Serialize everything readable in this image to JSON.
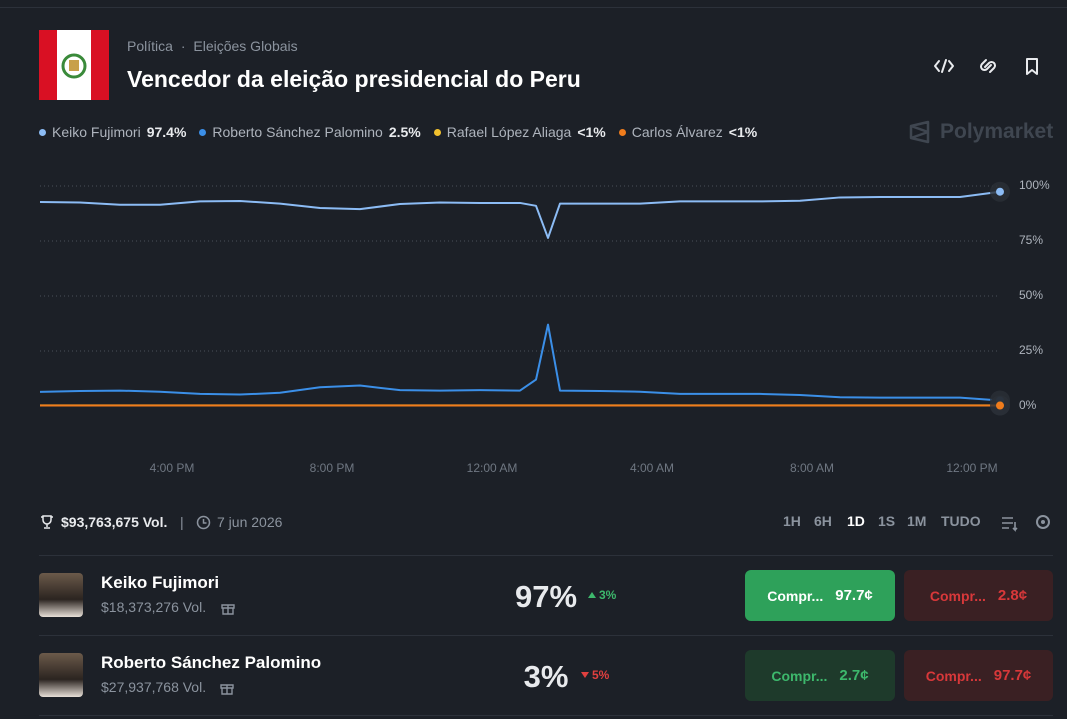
{
  "header": {
    "breadcrumb": [
      "Política",
      "Eleições Globais"
    ],
    "title": "Vencedor da eleição presidencial do Peru",
    "brand": "Polymarket"
  },
  "chart_data": {
    "type": "line",
    "x": [
      0,
      1,
      2,
      3,
      4,
      5,
      6,
      7,
      8,
      9,
      10,
      11,
      12,
      12.4,
      12.7,
      13,
      14,
      15,
      16,
      17,
      18,
      19,
      20,
      21,
      22,
      23,
      24
    ],
    "xlim": [
      0,
      24
    ],
    "xticks": [
      {
        "value": 3.3,
        "label": "4:00 PM"
      },
      {
        "value": 7.3,
        "label": "8:00 PM"
      },
      {
        "value": 11.3,
        "label": "12:00 AM"
      },
      {
        "value": 15.3,
        "label": "4:00 AM"
      },
      {
        "value": 19.3,
        "label": "8:00 AM"
      },
      {
        "value": 23.3,
        "label": "12:00 PM"
      }
    ],
    "ylim": [
      0,
      100
    ],
    "yticks": [
      {
        "value": 0,
        "label": "0%"
      },
      {
        "value": 25,
        "label": "25%"
      },
      {
        "value": 50,
        "label": "50%"
      },
      {
        "value": 75,
        "label": "75%"
      },
      {
        "value": 100,
        "label": "100%"
      }
    ],
    "grid": true,
    "series": [
      {
        "name": "Keiko Fujimori",
        "color": "#8cbcf5",
        "legend_label": "97.4%",
        "values": [
          92.7,
          92.5,
          91.5,
          91.5,
          93,
          93.2,
          92,
          90,
          89.5,
          91.8,
          92.5,
          92.3,
          92.3,
          91,
          76.4,
          92,
          92,
          92,
          93,
          93,
          93,
          93.3,
          94.8,
          95,
          95,
          95,
          97.4
        ]
      },
      {
        "name": "Roberto Sánchez Palomino",
        "color": "#3b8fe8",
        "legend_label": "2.5%",
        "values": [
          6.4,
          6.8,
          7,
          6.5,
          5.5,
          5.2,
          6,
          8.5,
          9.3,
          7.2,
          7,
          7.2,
          7,
          12,
          37,
          7,
          6.8,
          6.5,
          5.5,
          5.5,
          5.5,
          5,
          4,
          3.8,
          3.8,
          3.8,
          2.5
        ]
      },
      {
        "name": "Rafael López Aliaga",
        "color": "#f2c12e",
        "legend_label": "<1%",
        "values": [
          0.3,
          0.3,
          0.3,
          0.3,
          0.3,
          0.3,
          0.3,
          0.3,
          0.3,
          0.3,
          0.3,
          0.3,
          0.3,
          0.3,
          0.3,
          0.3,
          0.3,
          0.3,
          0.3,
          0.3,
          0.3,
          0.3,
          0.3,
          0.3,
          0.3,
          0.3,
          0.3
        ]
      },
      {
        "name": "Carlos Álvarez",
        "color": "#f07c1c",
        "legend_label": "<1%",
        "values": [
          0.2,
          0.2,
          0.2,
          0.2,
          0.2,
          0.2,
          0.2,
          0.2,
          0.2,
          0.2,
          0.2,
          0.2,
          0.2,
          0.2,
          0.2,
          0.2,
          0.2,
          0.2,
          0.2,
          0.2,
          0.2,
          0.2,
          0.2,
          0.2,
          0.2,
          0.2,
          0.2
        ]
      }
    ]
  },
  "footer": {
    "volume": "$93,763,675 Vol.",
    "date": "7 jun 2026",
    "ranges": [
      "1H",
      "6H",
      "1D",
      "1S",
      "1M",
      "TUDO"
    ],
    "active_range": "1D"
  },
  "outcomes": [
    {
      "name": "Keiko Fujimori",
      "volume": "$18,373,276 Vol.",
      "chance": "97%",
      "change": "3%",
      "direction": "up",
      "buy_label": "Compr...",
      "buy_price": "97.7¢",
      "sell_label": "Compr...",
      "sell_price": "2.8¢"
    },
    {
      "name": "Roberto Sánchez Palomino",
      "volume": "$27,937,768 Vol.",
      "chance": "3%",
      "change": "5%",
      "direction": "down",
      "buy_label": "Compr...",
      "buy_price": "2.7¢",
      "sell_label": "Compr...",
      "sell_price": "97.7¢"
    }
  ]
}
